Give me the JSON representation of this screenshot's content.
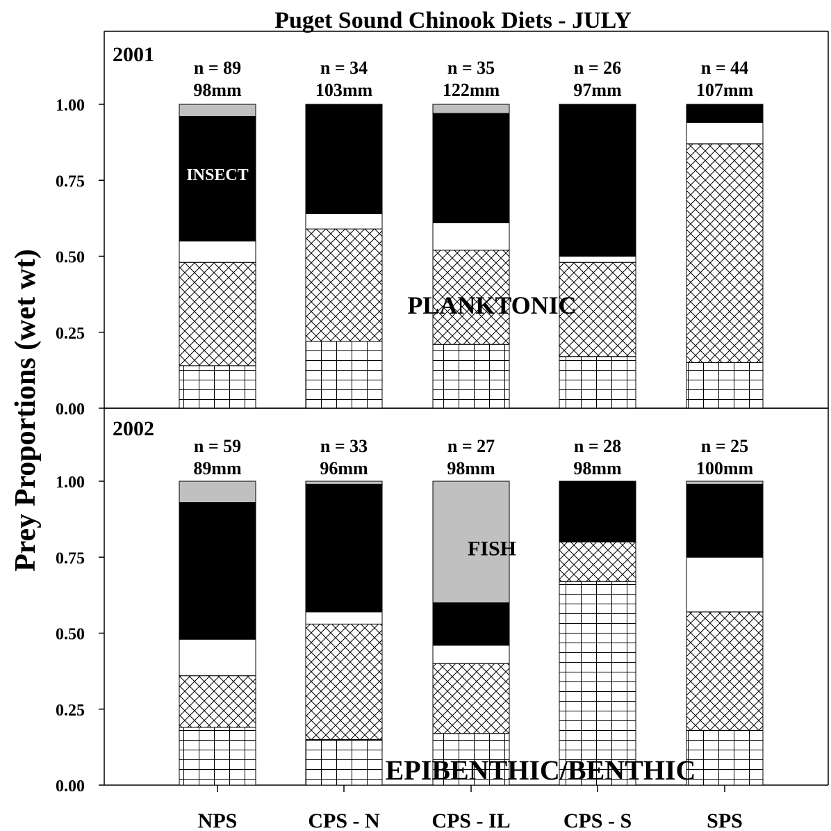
{
  "chart_data": {
    "type": "bar",
    "stacked": true,
    "title": "Puget Sound Chinook Diets - JULY",
    "ylabel": "Prey Proportions (wet wt)",
    "ylim": [
      0,
      1
    ],
    "yticks": [
      "0.00",
      "0.25",
      "0.50",
      "0.75",
      "1.00"
    ],
    "categories": [
      "NPS",
      "CPS - N",
      "CPS - IL",
      "CPS - S",
      "SPS"
    ],
    "segment_order": [
      "grid pattern",
      "crosshatch pattern",
      "white",
      "black",
      "gray"
    ],
    "segment_fills": {
      "grid pattern": "#ffffff",
      "crosshatch pattern": "#ffffff",
      "white": "#ffffff",
      "black": "#000000",
      "gray": "#c0c0c0"
    },
    "panels": [
      {
        "year": "2001",
        "n_labels": [
          "n = 89",
          "n = 34",
          "n = 35",
          "n = 26",
          "n = 44"
        ],
        "size_labels": [
          "98mm",
          "103mm",
          "122mm",
          "97mm",
          "107mm"
        ],
        "stacks": [
          [
            0.14,
            0.34,
            0.07,
            0.41,
            0.04
          ],
          [
            0.22,
            0.37,
            0.05,
            0.36,
            0.0
          ],
          [
            0.21,
            0.31,
            0.09,
            0.36,
            0.03
          ],
          [
            0.17,
            0.31,
            0.02,
            0.5,
            0.0
          ],
          [
            0.15,
            0.72,
            0.07,
            0.06,
            0.0
          ]
        ],
        "annotations": [
          {
            "text": "INSECT",
            "category": "NPS",
            "value": 0.77,
            "color": "#ffffff",
            "size": 24
          },
          {
            "text": "PLANKTONIC",
            "category": "CPS - IL",
            "value": 0.34,
            "offset": 0.3,
            "color": "#000000",
            "size": 36
          }
        ]
      },
      {
        "year": "2002",
        "n_labels": [
          "n = 59",
          "n = 33",
          "n = 27",
          "n = 28",
          "n = 25"
        ],
        "size_labels": [
          "89mm",
          "96mm",
          "98mm",
          "98mm",
          "100mm"
        ],
        "stacks": [
          [
            0.19,
            0.17,
            0.12,
            0.45,
            0.07
          ],
          [
            0.15,
            0.38,
            0.04,
            0.42,
            0.01
          ],
          [
            0.17,
            0.23,
            0.06,
            0.14,
            0.4
          ],
          [
            0.67,
            0.13,
            0.0,
            0.2,
            0.0
          ],
          [
            0.18,
            0.39,
            0.18,
            0.24,
            0.01
          ]
        ],
        "annotations": [
          {
            "text": "FISH",
            "category": "CPS - IL",
            "value": 0.78,
            "offset": 0.3,
            "color": "#000000",
            "size": 30
          },
          {
            "text": "EPIBENTHIC/BENTHIC",
            "category": "CPS - IL",
            "value": 0.05,
            "offset": 1.0,
            "color": "#000000",
            "size": 40
          }
        ]
      }
    ]
  }
}
